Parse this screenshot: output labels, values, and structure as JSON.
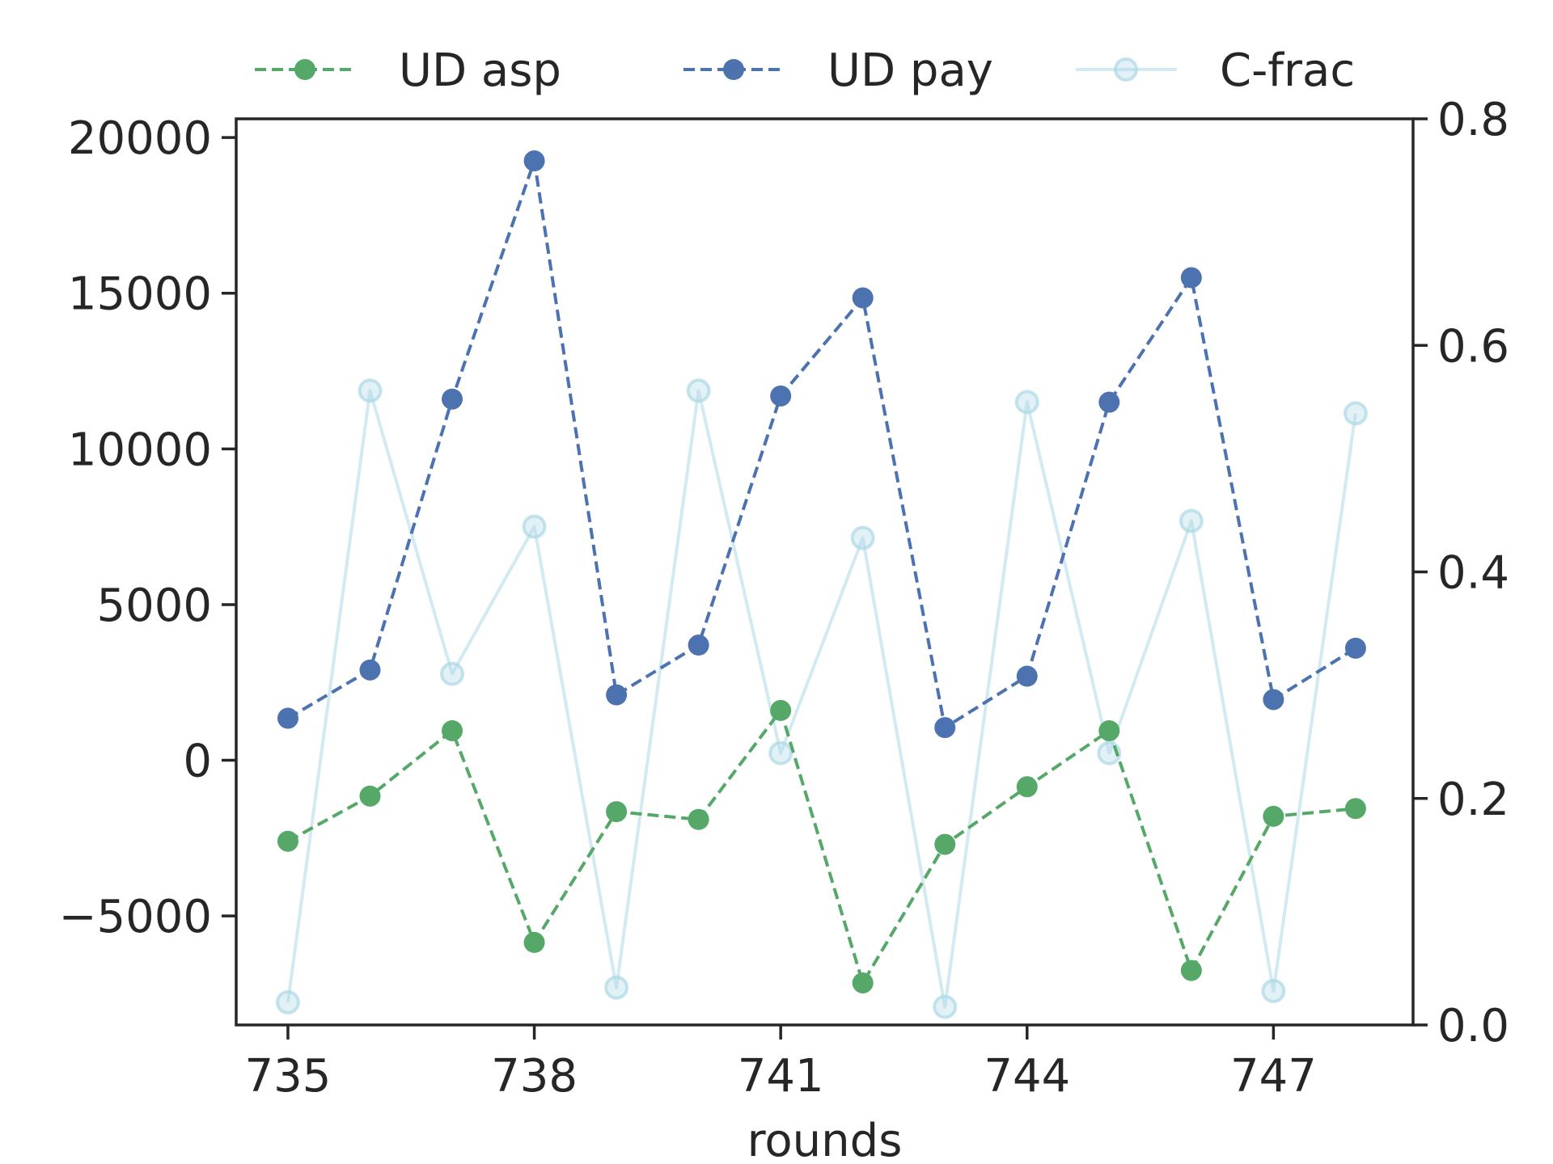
{
  "chart_data": {
    "type": "line",
    "xlabel": "rounds",
    "x": [
      735,
      736,
      737,
      738,
      739,
      740,
      741,
      742,
      743,
      744,
      745,
      746,
      747,
      748
    ],
    "xticks": [
      735,
      738,
      741,
      744,
      747
    ],
    "xlim": [
      734.37,
      748.7
    ],
    "left_axis": {
      "ylim": [
        -8500,
        20600
      ],
      "ticks": [
        -5000,
        0,
        5000,
        10000,
        15000,
        20000
      ],
      "tick_labels": [
        "−5000",
        "0",
        "5000",
        "10000",
        "15000",
        "20000"
      ]
    },
    "right_axis": {
      "ylim": [
        0.0,
        0.8
      ],
      "ticks": [
        0.0,
        0.2,
        0.4,
        0.6,
        0.8
      ],
      "tick_labels": [
        "0.0",
        "0.2",
        "0.4",
        "0.6",
        "0.8"
      ]
    },
    "series": [
      {
        "name": "UD asp",
        "axis": "left",
        "color": "#55a868",
        "style": "dashed",
        "values": [
          -2600,
          -1150,
          950,
          -5850,
          -1650,
          -1900,
          1600,
          -7150,
          -2700,
          -850,
          950,
          -6750,
          -1800,
          -1550
        ]
      },
      {
        "name": "UD pay",
        "axis": "left",
        "color": "#4c72b0",
        "style": "dashed",
        "values": [
          1350,
          2900,
          11600,
          19250,
          2100,
          3700,
          11700,
          14850,
          1050,
          2700,
          11500,
          15500,
          1950,
          3600
        ]
      },
      {
        "name": "C-frac",
        "axis": "right",
        "color": "#add8e6",
        "style": "solid",
        "values": [
          0.02,
          0.56,
          0.31,
          0.44,
          0.033,
          0.56,
          0.24,
          0.43,
          0.016,
          0.55,
          0.24,
          0.445,
          0.03,
          0.54
        ]
      }
    ],
    "legend_position": "top"
  }
}
